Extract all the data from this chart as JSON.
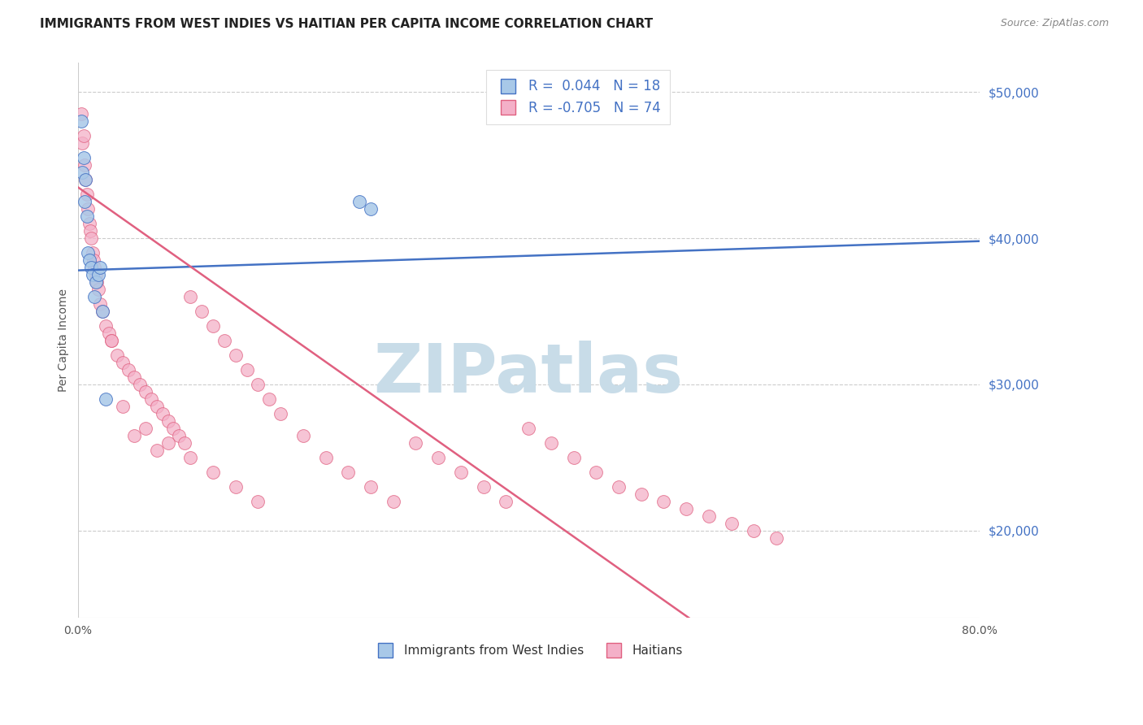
{
  "title": "IMMIGRANTS FROM WEST INDIES VS HAITIAN PER CAPITA INCOME CORRELATION CHART",
  "source": "Source: ZipAtlas.com",
  "ylabel": "Per Capita Income",
  "right_ytick_labels": [
    "$20,000",
    "$30,000",
    "$40,000",
    "$50,000"
  ],
  "right_ytick_vals": [
    20000,
    30000,
    40000,
    50000
  ],
  "watermark": "ZIPatlas",
  "blue_color_face": "#a8c8e8",
  "blue_color_edge": "#4472c4",
  "pink_color_face": "#f4b0c8",
  "pink_color_edge": "#e06080",
  "blue_line_color": "#4472c4",
  "pink_line_color": "#e06080",
  "grid_color": "#cccccc",
  "background_color": "#ffffff",
  "watermark_color": "#c8dce8",
  "blue_trend": [
    0.0,
    37800,
    0.8,
    39800
  ],
  "pink_trend": [
    0.0,
    43500,
    0.8,
    0
  ],
  "blue_scatter_x": [
    0.003,
    0.004,
    0.005,
    0.006,
    0.007,
    0.008,
    0.009,
    0.01,
    0.012,
    0.013,
    0.015,
    0.016,
    0.018,
    0.02,
    0.022,
    0.025,
    0.25,
    0.26
  ],
  "blue_scatter_y": [
    48000,
    44500,
    45500,
    42500,
    44000,
    41500,
    39000,
    38500,
    38000,
    37500,
    36000,
    37000,
    37500,
    38000,
    35000,
    29000,
    42500,
    42000
  ],
  "pink_scatter_x": [
    0.003,
    0.004,
    0.005,
    0.006,
    0.007,
    0.008,
    0.009,
    0.01,
    0.011,
    0.012,
    0.013,
    0.014,
    0.015,
    0.016,
    0.017,
    0.018,
    0.02,
    0.022,
    0.025,
    0.028,
    0.03,
    0.035,
    0.04,
    0.045,
    0.05,
    0.055,
    0.06,
    0.065,
    0.07,
    0.075,
    0.08,
    0.085,
    0.09,
    0.095,
    0.1,
    0.11,
    0.12,
    0.13,
    0.14,
    0.15,
    0.16,
    0.17,
    0.18,
    0.2,
    0.22,
    0.24,
    0.26,
    0.28,
    0.3,
    0.32,
    0.34,
    0.36,
    0.38,
    0.4,
    0.42,
    0.44,
    0.46,
    0.48,
    0.5,
    0.52,
    0.54,
    0.56,
    0.58,
    0.6,
    0.04,
    0.06,
    0.08,
    0.1,
    0.12,
    0.14,
    0.16,
    0.62,
    0.03,
    0.05,
    0.07
  ],
  "pink_scatter_y": [
    48500,
    46500,
    47000,
    45000,
    44000,
    43000,
    42000,
    41000,
    40500,
    40000,
    39000,
    38500,
    38000,
    37500,
    37000,
    36500,
    35500,
    35000,
    34000,
    33500,
    33000,
    32000,
    31500,
    31000,
    30500,
    30000,
    29500,
    29000,
    28500,
    28000,
    27500,
    27000,
    26500,
    26000,
    36000,
    35000,
    34000,
    33000,
    32000,
    31000,
    30000,
    29000,
    28000,
    26500,
    25000,
    24000,
    23000,
    22000,
    26000,
    25000,
    24000,
    23000,
    22000,
    27000,
    26000,
    25000,
    24000,
    23000,
    22500,
    22000,
    21500,
    21000,
    20500,
    20000,
    28500,
    27000,
    26000,
    25000,
    24000,
    23000,
    22000,
    19500,
    33000,
    26500,
    25500
  ],
  "xlim": [
    0.0,
    0.8
  ],
  "ylim": [
    14000,
    52000
  ],
  "xtick_positions": [
    0.0,
    0.1,
    0.2,
    0.3,
    0.4,
    0.5,
    0.6,
    0.7,
    0.8
  ],
  "xtick_labels": [
    "0.0%",
    "",
    "",
    "",
    "",
    "",
    "",
    "",
    "80.0%"
  ]
}
